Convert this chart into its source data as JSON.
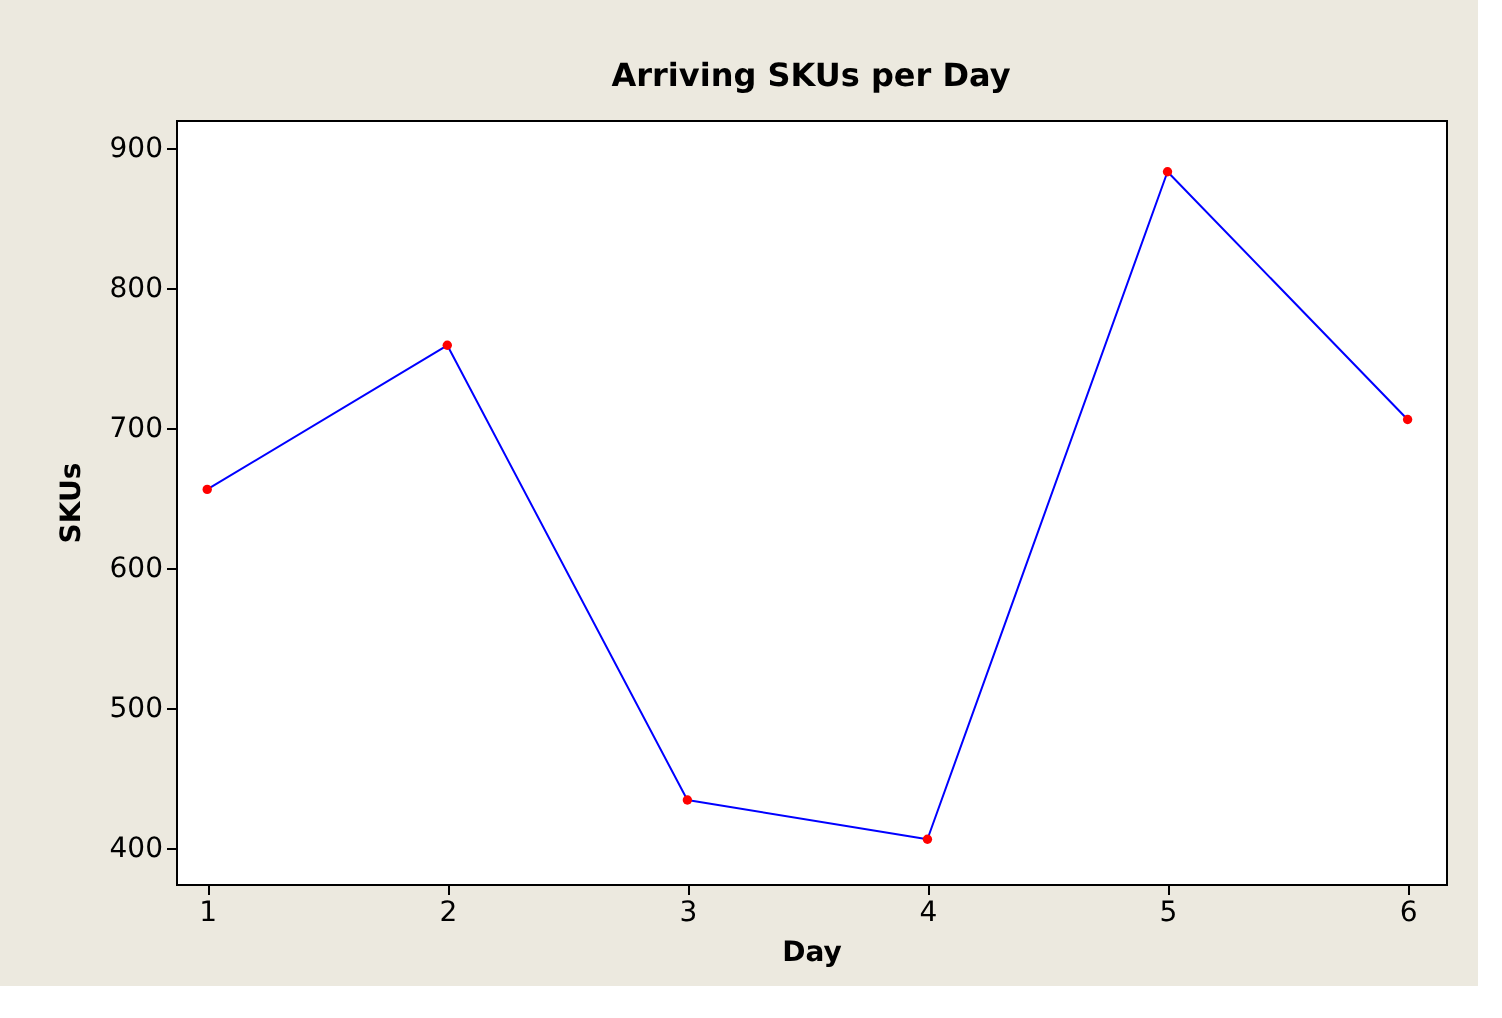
{
  "chart_data": {
    "type": "line",
    "title": "Arriving SKUs per Day",
    "xlabel": "Day",
    "ylabel": "SKUs",
    "x": [
      1,
      2,
      3,
      4,
      5,
      6
    ],
    "series": [
      {
        "color": "#0000ff",
        "colors": [
          "#ff0000",
          "#ff0000",
          "#ff0000",
          "#ff0000",
          "#ff0000",
          "#ff0000"
        ],
        "values": [
          656,
          759,
          434,
          406,
          883,
          706
        ]
      }
    ],
    "xlim": [
      0.87,
      6.16
    ],
    "xticks": [
      1,
      2,
      3,
      4,
      5,
      6
    ],
    "ylim": [
      374,
      920
    ],
    "yticks": [
      400,
      500,
      600,
      700,
      800,
      900
    ],
    "grid": false,
    "marker": "circle",
    "line_style": "solid"
  }
}
